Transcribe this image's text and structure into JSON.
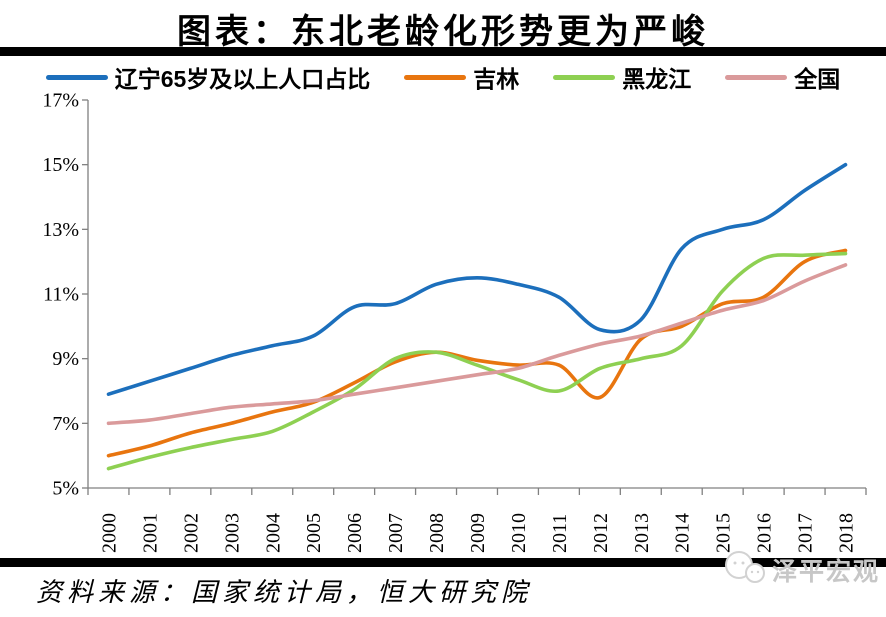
{
  "page": {
    "title": "图表：东北老龄化形势更为严峻",
    "source": "资料来源：国家统计局，恒大研究院",
    "watermark_text": "泽平宏观"
  },
  "colors": {
    "liaoning_blue": "#1C6FBC",
    "jilin_orange": "#E8750F",
    "heilongjiang_green": "#8ED052",
    "national_pink": "#DA9A9B",
    "axis_gray": "#808080",
    "rule_black": "#000000",
    "watermark_gray": "#C7C7C7"
  },
  "chart_data": {
    "type": "line",
    "title": "图表：东北老龄化形势更为严峻",
    "x": [
      "2000",
      "2001",
      "2002",
      "2003",
      "2004",
      "2005",
      "2006",
      "2007",
      "2008",
      "2009",
      "2010",
      "2011",
      "2012",
      "2013",
      "2014",
      "2015",
      "2016",
      "2017",
      "2018"
    ],
    "series": [
      {
        "name": "辽宁65岁及以上人口占比",
        "color": "#1C6FBC",
        "values": [
          7.9,
          8.3,
          8.7,
          9.1,
          9.4,
          9.7,
          10.6,
          10.7,
          11.3,
          11.5,
          11.3,
          10.9,
          9.9,
          10.2,
          12.4,
          13.0,
          13.3,
          14.2,
          15.0
        ]
      },
      {
        "name": "吉林",
        "color": "#E8750F",
        "values": [
          6.0,
          6.3,
          6.7,
          7.0,
          7.35,
          7.65,
          8.25,
          8.9,
          9.2,
          8.95,
          8.8,
          8.8,
          7.8,
          9.6,
          10.0,
          10.7,
          10.9,
          12.0,
          12.35
        ]
      },
      {
        "name": "黑龙江",
        "color": "#8ED052",
        "values": [
          5.6,
          5.95,
          6.25,
          6.5,
          6.75,
          7.35,
          8.05,
          9.0,
          9.2,
          8.8,
          8.35,
          8.0,
          8.7,
          9.0,
          9.4,
          11.1,
          12.1,
          12.2,
          12.25
        ]
      },
      {
        "name": "全国",
        "color": "#DA9A9B",
        "values": [
          7.0,
          7.1,
          7.3,
          7.5,
          7.6,
          7.7,
          7.9,
          8.1,
          8.3,
          8.5,
          8.7,
          9.1,
          9.45,
          9.7,
          10.1,
          10.5,
          10.8,
          11.4,
          11.9
        ]
      }
    ],
    "ylim": [
      5,
      17
    ],
    "ytick_step": 2,
    "ytick_suffix": "%",
    "xlabel": "",
    "ylabel": "",
    "grid": false,
    "legend_position": "top"
  }
}
